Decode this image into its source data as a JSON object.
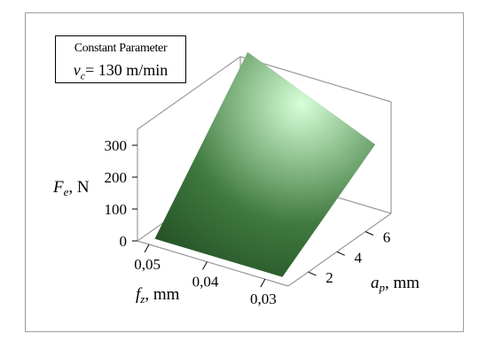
{
  "chart_data": {
    "type": "surface",
    "legend": {
      "title": "Constant Parameter",
      "parameter_symbol": "v",
      "parameter_subscript": "c",
      "parameter_value": "= 130 m/min"
    },
    "z_axis": {
      "label_symbol": "F",
      "label_subscript": "e",
      "label_unit": ", N",
      "ticks": [
        "0",
        "100",
        "200",
        "300"
      ],
      "tick_values": [
        0,
        100,
        200,
        300
      ],
      "range": [
        0,
        350
      ]
    },
    "x_axis": {
      "label_symbol": "f",
      "label_subscript": "z",
      "label_unit": ", mm",
      "ticks": [
        "0,05",
        "0,04",
        "0,03"
      ],
      "tick_values": [
        0.05,
        0.04,
        0.03
      ],
      "range": [
        0.026,
        0.052
      ]
    },
    "y_axis": {
      "label_symbol": "a",
      "label_subscript": "p",
      "label_unit": ", mm",
      "ticks": [
        "2",
        "4",
        "6"
      ],
      "tick_values": [
        2,
        4,
        6
      ],
      "range": [
        0.6,
        7.8
      ]
    },
    "surface_corners": [
      {
        "f_z": 0.05,
        "a_p": 1.0,
        "F_e": 5
      },
      {
        "f_z": 0.028,
        "a_p": 1.0,
        "F_e": 5
      },
      {
        "f_z": 0.028,
        "a_p": 7.5,
        "F_e": 215
      },
      {
        "f_z": 0.05,
        "a_p": 7.5,
        "F_e": 385
      }
    ],
    "surface_color": "#3f7a3f",
    "highlight_color": "#d8ffd8",
    "shadow_color": "#0f2f12",
    "box_color": "#9a9a9a"
  }
}
